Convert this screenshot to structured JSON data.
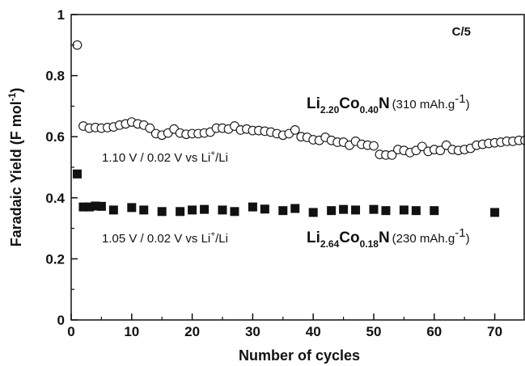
{
  "chart_data": {
    "type": "scatter",
    "title": "",
    "xlabel": "Number of cycles",
    "ylabel": "Faradaic Yield (F mol",
    "ylabel_sup": "-1",
    "ylabel_tail": ")",
    "xlim": [
      0,
      75
    ],
    "ylim": [
      0,
      1
    ],
    "x_ticks": [
      "0",
      "10",
      "20",
      "30",
      "40",
      "50",
      "60",
      "70"
    ],
    "y_ticks": [
      "0",
      "0.2",
      "0.4",
      "0.6",
      "0.8",
      "1"
    ],
    "grid": false,
    "rate_label": "C/5",
    "series": [
      {
        "marker": "open-circle",
        "formula": {
          "el1": "Li",
          "sub1": "2.20",
          "el2": "Co",
          "sub2": "0.40",
          "el3": "N",
          "capacity": "(310 mAh.g",
          "capacity_sup": "-1",
          "capacity_tail": ")"
        },
        "window": {
          "text": "1.10 V / 0.02 V vs Li",
          "sup": "+",
          "tail": "/Li"
        },
        "x": [
          1,
          2,
          3,
          4,
          5,
          6,
          7,
          8,
          9,
          10,
          11,
          12,
          13,
          14,
          15,
          16,
          17,
          18,
          19,
          20,
          21,
          22,
          23,
          24,
          25,
          26,
          27,
          28,
          29,
          30,
          31,
          32,
          33,
          34,
          35,
          36,
          37,
          38,
          39,
          40,
          41,
          42,
          43,
          44,
          45,
          46,
          47,
          48,
          49,
          50,
          51,
          52,
          53,
          54,
          55,
          56,
          57,
          58,
          59,
          60,
          61,
          62,
          63,
          64,
          65,
          66,
          67,
          68,
          69,
          70,
          71,
          72,
          73,
          74,
          75
        ],
        "y": [
          0.9,
          0.635,
          0.628,
          0.63,
          0.628,
          0.63,
          0.632,
          0.638,
          0.642,
          0.648,
          0.642,
          0.638,
          0.628,
          0.61,
          0.605,
          0.612,
          0.625,
          0.612,
          0.608,
          0.61,
          0.61,
          0.612,
          0.615,
          0.628,
          0.628,
          0.625,
          0.635,
          0.622,
          0.625,
          0.62,
          0.62,
          0.618,
          0.615,
          0.61,
          0.605,
          0.61,
          0.622,
          0.6,
          0.598,
          0.59,
          0.588,
          0.598,
          0.588,
          0.582,
          0.582,
          0.572,
          0.585,
          0.575,
          0.572,
          0.57,
          0.542,
          0.54,
          0.54,
          0.558,
          0.555,
          0.548,
          0.555,
          0.568,
          0.552,
          0.558,
          0.555,
          0.572,
          0.558,
          0.555,
          0.558,
          0.562,
          0.572,
          0.575,
          0.578,
          0.58,
          0.582,
          0.585,
          0.585,
          0.588,
          0.588
        ]
      },
      {
        "marker": "filled-square",
        "formula": {
          "el1": "Li",
          "sub1": "2.64",
          "el2": "Co",
          "sub2": "0.18",
          "el3": "N",
          "capacity": "(230 mAh.g",
          "capacity_sup": "-1",
          "capacity_tail": ")"
        },
        "window": {
          "text": "1.05 V / 0.02 V vs Li",
          "sup": "+",
          "tail": "/Li"
        },
        "x": [
          1,
          2,
          3,
          4,
          5,
          7,
          10,
          12,
          15,
          18,
          20,
          22,
          25,
          27,
          30,
          32,
          35,
          37,
          40,
          43,
          45,
          47,
          50,
          52,
          55,
          57,
          60,
          70
        ],
        "y": [
          0.478,
          0.37,
          0.37,
          0.373,
          0.372,
          0.36,
          0.368,
          0.36,
          0.355,
          0.355,
          0.36,
          0.362,
          0.36,
          0.355,
          0.37,
          0.363,
          0.358,
          0.365,
          0.352,
          0.358,
          0.362,
          0.36,
          0.362,
          0.358,
          0.36,
          0.358,
          0.358,
          0.352
        ]
      }
    ]
  }
}
